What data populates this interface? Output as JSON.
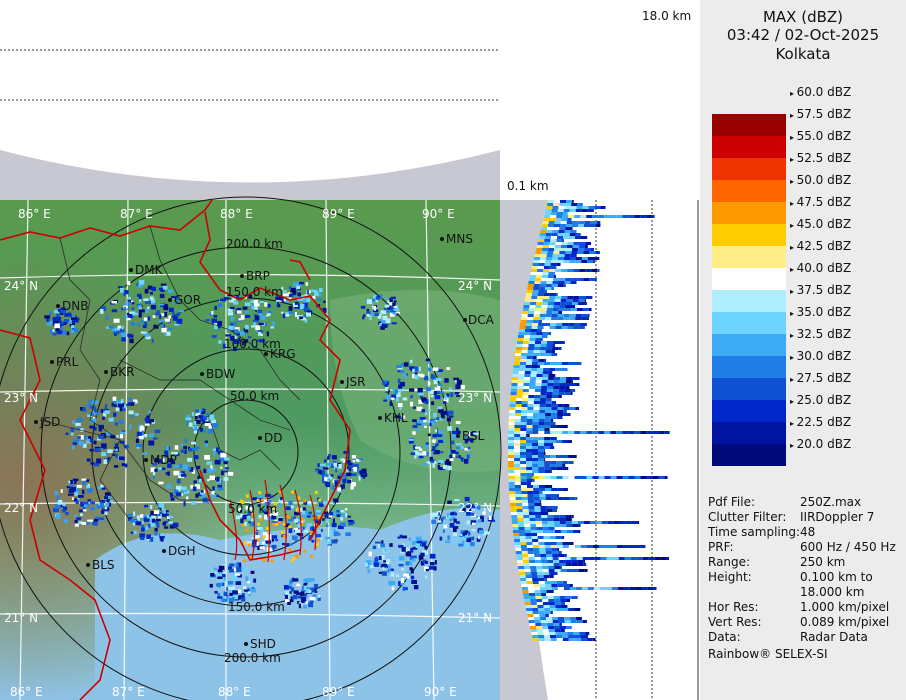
{
  "header": {
    "title": "MAX (dBZ)",
    "datetime": "03:42 / 02-Oct-2025",
    "station": "Kolkata"
  },
  "top_section": {
    "height_label": "18.0 km"
  },
  "side_section": {
    "height_label": "0.1 km"
  },
  "map": {
    "lon_labels": [
      "86° E",
      "87° E",
      "88° E",
      "89° E",
      "90° E"
    ],
    "lat_labels": [
      "24° N",
      "23° N",
      "22° N",
      "21° N"
    ],
    "range_labels": [
      "50.0 km",
      "100.0 km",
      "150.0 km",
      "200.0 km"
    ],
    "stations": [
      "MNS",
      "DMK",
      "BRP",
      "DNB",
      "GOR",
      "DCA",
      "PRL",
      "BKR",
      "KRG",
      "BDW",
      "JSR",
      "JSD",
      "KHL",
      "BSL",
      "DD",
      "MDP",
      "DGH",
      "BLS",
      "SHD"
    ]
  },
  "legend": {
    "entries": [
      {
        "label": "60.0 dBZ",
        "color": "transparent"
      },
      {
        "label": "57.5 dBZ",
        "color": "#9a0000"
      },
      {
        "label": "55.0 dBZ",
        "color": "#cc0000"
      },
      {
        "label": "52.5 dBZ",
        "color": "#ee3300"
      },
      {
        "label": "50.0 dBZ",
        "color": "#ff6600"
      },
      {
        "label": "47.5 dBZ",
        "color": "#ff9900"
      },
      {
        "label": "45.0 dBZ",
        "color": "#ffcc00"
      },
      {
        "label": "42.5 dBZ",
        "color": "#ffee88"
      },
      {
        "label": "40.0 dBZ",
        "color": "#ffffff"
      },
      {
        "label": "37.5 dBZ",
        "color": "#aeeeff"
      },
      {
        "label": "35.0 dBZ",
        "color": "#6cd4ff"
      },
      {
        "label": "32.5 dBZ",
        "color": "#3caaf5"
      },
      {
        "label": "30.0 dBZ",
        "color": "#1e7ee6"
      },
      {
        "label": "27.5 dBZ",
        "color": "#1050d2"
      },
      {
        "label": "25.0 dBZ",
        "color": "#0028c8"
      },
      {
        "label": "22.5 dBZ",
        "color": "#0014a0"
      },
      {
        "label": "20.0 dBZ",
        "color": "#000a78"
      }
    ]
  },
  "info": [
    {
      "key": "Pdf File:",
      "value": "250Z.max"
    },
    {
      "key": "Clutter Filter:",
      "value": "IIRDoppler 7"
    },
    {
      "key": "Time sampling:",
      "value": "48"
    },
    {
      "key": "PRF:",
      "value": "600 Hz / 450 Hz"
    },
    {
      "key": "Range:",
      "value": "250 km"
    },
    {
      "key": "Height:",
      "value": "0.100 km to"
    },
    {
      "key": "",
      "value": "18.000 km"
    },
    {
      "key": "Hor Res:",
      "value": "1.000 km/pixel"
    },
    {
      "key": "Vert Res:",
      "value": "0.089 km/pixel"
    },
    {
      "key": "Data:",
      "value": "Radar Data"
    }
  ],
  "footer": "Rainbow® SELEX-SI"
}
